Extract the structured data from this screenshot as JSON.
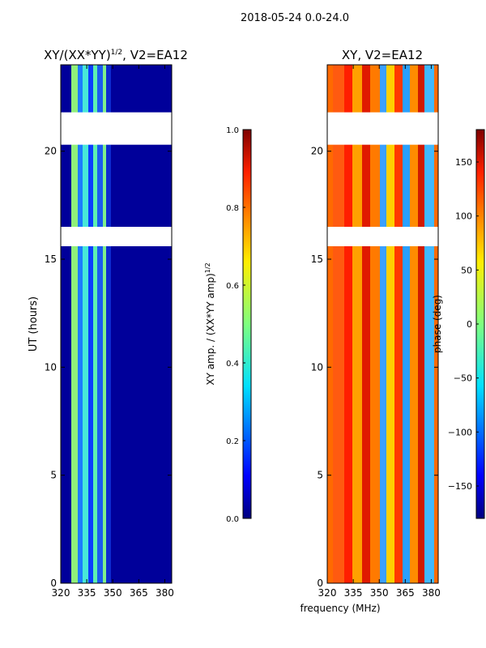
{
  "figure": {
    "suptitle": "2018-05-24 0.0-24.0",
    "shared_xlabel": "frequency (MHz)"
  },
  "chart_data": [
    {
      "type": "heatmap",
      "title": "XY/(XX*YY)^1/2, V2=EA12",
      "title_main": "XY/(XX*YY)",
      "title_sup": "1/2",
      "title_rest": ", V2=EA12",
      "xlabel": "",
      "ylabel": "UT (hours)",
      "x_ticks": [
        "320",
        "335",
        "350",
        "365",
        "380"
      ],
      "x_tick_values": [
        320,
        335,
        350,
        365,
        380
      ],
      "xlim": [
        320,
        384
      ],
      "y_ticks": [
        "0",
        "5",
        "10",
        "15",
        "20"
      ],
      "y_tick_values": [
        0,
        5,
        10,
        15,
        20
      ],
      "ylim": [
        0,
        24
      ],
      "colorbar": {
        "label_main": "XY amp. / (XX*YY amp)",
        "label_sup": "1/2",
        "ticks": [
          "0.0",
          "0.2",
          "0.4",
          "0.6",
          "0.8",
          "1.0"
        ],
        "tick_values": [
          0.0,
          0.2,
          0.4,
          0.6,
          0.8,
          1.0
        ],
        "range": [
          0.0,
          1.0
        ]
      },
      "data_gaps_hours": [
        [
          16.5,
          15.6
        ],
        [
          21.8,
          20.3
        ]
      ]
    },
    {
      "type": "heatmap",
      "title": "XY, V2=EA12",
      "xlabel": "frequency (MHz)",
      "ylabel": "",
      "x_ticks": [
        "320",
        "335",
        "350",
        "365",
        "380"
      ],
      "x_tick_values": [
        320,
        335,
        350,
        365,
        380
      ],
      "xlim": [
        320,
        384
      ],
      "y_ticks": [
        "0",
        "5",
        "10",
        "15",
        "20"
      ],
      "y_tick_values": [
        0,
        5,
        10,
        15,
        20
      ],
      "ylim": [
        0,
        24
      ],
      "colorbar": {
        "label": "phase (deg)",
        "ticks": [
          "−150",
          "−100",
          "−50",
          "0",
          "50",
          "100",
          "150"
        ],
        "tick_values": [
          -150,
          -100,
          -50,
          0,
          50,
          100,
          150
        ],
        "range": [
          -180,
          180
        ]
      },
      "data_gaps_hours": [
        [
          16.5,
          15.6
        ],
        [
          21.8,
          20.3
        ]
      ]
    }
  ]
}
